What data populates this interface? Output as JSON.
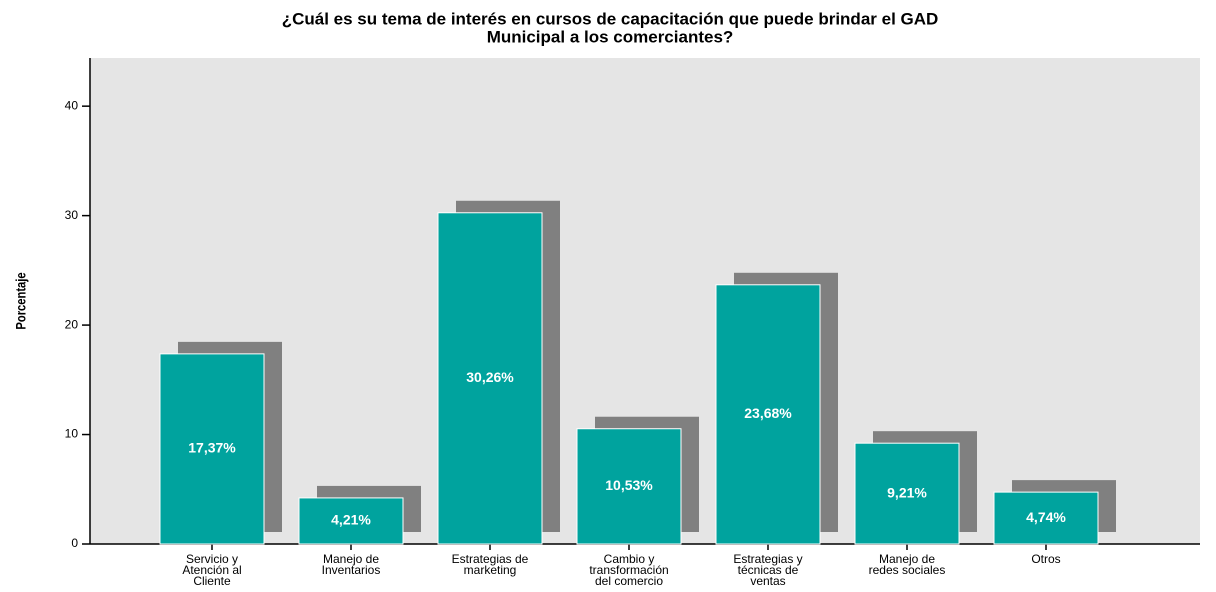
{
  "chart_data": {
    "type": "bar",
    "title": [
      "¿Cuál es su tema de interés en cursos de capacitación que puede brindar el GAD",
      "Municipal a los comerciantes?"
    ],
    "y_label": "Porcentaje",
    "categories": [
      [
        "Servicio y",
        "Atención al",
        "Cliente"
      ],
      [
        "Manejo de",
        "Inventarios"
      ],
      [
        "Estrategias de",
        "marketing"
      ],
      [
        "Cambio y",
        "transformación",
        "del comercio"
      ],
      [
        "Estrategias y",
        "técnicas de",
        "ventas"
      ],
      [
        "Manejo de",
        "redes sociales"
      ],
      [
        "Otros"
      ]
    ],
    "values": [
      17.37,
      4.21,
      30.26,
      10.53,
      23.68,
      9.21,
      4.74
    ],
    "value_labels": [
      "17,37%",
      "4,21%",
      "30,26%",
      "10,53%",
      "23,68%",
      "9,21%",
      "4,74%"
    ],
    "color": "#00a39e",
    "shadow_color": "#808080",
    "ylim": [
      0,
      44.4
    ],
    "yticks": [
      0,
      10,
      20,
      30,
      40
    ],
    "grid": false
  }
}
